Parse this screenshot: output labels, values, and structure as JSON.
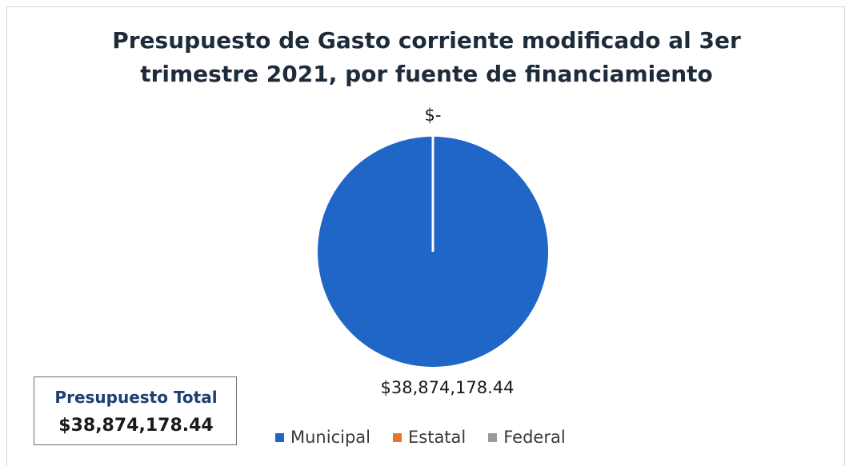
{
  "chart_data": {
    "type": "pie",
    "title_lines": [
      "Presupuesto de Gasto corriente modificado al 3er",
      "trimestre 2021, por fuente de financiamiento"
    ],
    "categories": [
      "Municipal",
      "Estatal",
      "Federal"
    ],
    "values": [
      38874178.44,
      0,
      0
    ],
    "data_labels": [
      "$38,874,178.44",
      "$-",
      "$-"
    ],
    "colors": [
      "#1f66c7",
      "#e8742c",
      "#9a9a9a"
    ],
    "legend": "bottom",
    "visible_zero_label": "$-"
  },
  "total_box": {
    "label": "Presupuesto Total",
    "value": "$38,874,178.44"
  }
}
